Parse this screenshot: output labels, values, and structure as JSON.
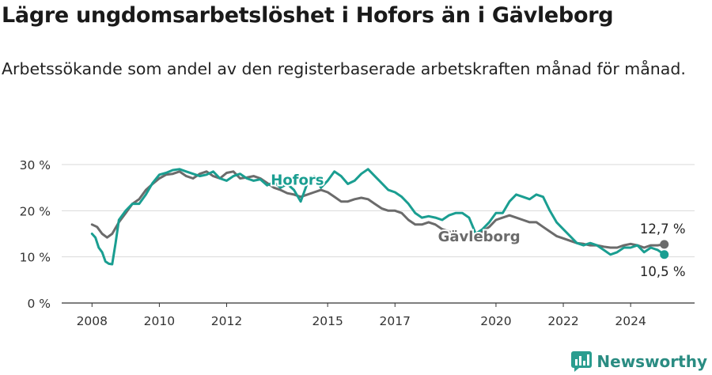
{
  "header": {
    "title": "Lägre ungdomsarbetslöshet i Hofors än i Gävleborg",
    "subtitle": "Arbetssökande som andel av den registerbaserade arbetskraften månad för månad."
  },
  "brand": {
    "name": "Newsworthy",
    "logo_icon": "newsworthy-logo-icon",
    "color": "#2a9d8f"
  },
  "chart_data": {
    "type": "line",
    "title": "Lägre ungdomsarbetslöshet i Hofors än i Gävleborg",
    "subtitle": "Arbetssökande som andel av den registerbaserade arbetskraften månad för månad.",
    "x_ticks": [
      "2008",
      "2010",
      "2012",
      "2015",
      "2017",
      "2020",
      "2022",
      "2024"
    ],
    "xlim": [
      2007.1,
      2025.9
    ],
    "y_ticks": [
      "0 %",
      "10 %",
      "20 %",
      "30 %"
    ],
    "ylim": [
      0,
      30
    ],
    "grid": true,
    "legend": "inline labels",
    "series": [
      {
        "name": "Hofors",
        "color": "#1a9e91",
        "points": [
          [
            2008.0,
            15.0
          ],
          [
            2008.1,
            14.2
          ],
          [
            2008.2,
            12.0
          ],
          [
            2008.3,
            11.0
          ],
          [
            2008.4,
            9.0
          ],
          [
            2008.5,
            8.5
          ],
          [
            2008.6,
            8.4
          ],
          [
            2008.7,
            13.0
          ],
          [
            2008.8,
            18.0
          ],
          [
            2009.0,
            20.0
          ],
          [
            2009.2,
            21.5
          ],
          [
            2009.4,
            21.5
          ],
          [
            2009.6,
            23.5
          ],
          [
            2009.8,
            26.0
          ],
          [
            2010.0,
            27.8
          ],
          [
            2010.2,
            28.2
          ],
          [
            2010.4,
            28.8
          ],
          [
            2010.6,
            29.0
          ],
          [
            2010.8,
            28.5
          ],
          [
            2011.0,
            28.0
          ],
          [
            2011.2,
            27.5
          ],
          [
            2011.4,
            27.8
          ],
          [
            2011.6,
            28.5
          ],
          [
            2011.8,
            27.0
          ],
          [
            2012.0,
            26.5
          ],
          [
            2012.2,
            27.5
          ],
          [
            2012.4,
            28.0
          ],
          [
            2012.6,
            27.0
          ],
          [
            2012.8,
            26.5
          ],
          [
            2013.0,
            26.8
          ],
          [
            2013.2,
            25.5
          ],
          [
            2013.4,
            26.2
          ],
          [
            2013.6,
            25.0
          ],
          [
            2013.8,
            25.8
          ],
          [
            2014.0,
            24.5
          ],
          [
            2014.2,
            22.0
          ],
          [
            2014.4,
            26.0
          ],
          [
            2014.6,
            27.5
          ],
          [
            2014.8,
            25.0
          ],
          [
            2015.0,
            26.5
          ],
          [
            2015.2,
            28.5
          ],
          [
            2015.4,
            27.5
          ],
          [
            2015.6,
            25.8
          ],
          [
            2015.8,
            26.5
          ],
          [
            2016.0,
            28.0
          ],
          [
            2016.2,
            29.0
          ],
          [
            2016.4,
            27.5
          ],
          [
            2016.6,
            26.0
          ],
          [
            2016.8,
            24.5
          ],
          [
            2017.0,
            24.0
          ],
          [
            2017.2,
            23.0
          ],
          [
            2017.4,
            21.5
          ],
          [
            2017.6,
            19.5
          ],
          [
            2017.8,
            18.5
          ],
          [
            2018.0,
            18.8
          ],
          [
            2018.2,
            18.5
          ],
          [
            2018.4,
            18.0
          ],
          [
            2018.6,
            19.0
          ],
          [
            2018.8,
            19.5
          ],
          [
            2019.0,
            19.5
          ],
          [
            2019.2,
            18.5
          ],
          [
            2019.4,
            15.0
          ],
          [
            2019.6,
            16.0
          ],
          [
            2019.8,
            17.5
          ],
          [
            2020.0,
            19.5
          ],
          [
            2020.2,
            19.5
          ],
          [
            2020.4,
            22.0
          ],
          [
            2020.6,
            23.5
          ],
          [
            2020.8,
            23.0
          ],
          [
            2021.0,
            22.5
          ],
          [
            2021.2,
            23.5
          ],
          [
            2021.4,
            23.0
          ],
          [
            2021.6,
            20.0
          ],
          [
            2021.8,
            17.5
          ],
          [
            2022.0,
            16.0
          ],
          [
            2022.2,
            14.5
          ],
          [
            2022.4,
            13.0
          ],
          [
            2022.6,
            12.5
          ],
          [
            2022.8,
            13.0
          ],
          [
            2023.0,
            12.5
          ],
          [
            2023.2,
            11.5
          ],
          [
            2023.4,
            10.5
          ],
          [
            2023.6,
            11.0
          ],
          [
            2023.8,
            12.0
          ],
          [
            2024.0,
            12.0
          ],
          [
            2024.2,
            12.5
          ],
          [
            2024.4,
            11.0
          ],
          [
            2024.6,
            12.0
          ],
          [
            2024.8,
            11.5
          ],
          [
            2025.0,
            10.5
          ]
        ]
      },
      {
        "name": "Gävleborg",
        "color": "#6b6b6b",
        "points": [
          [
            2008.0,
            17.0
          ],
          [
            2008.15,
            16.5
          ],
          [
            2008.3,
            15.0
          ],
          [
            2008.45,
            14.2
          ],
          [
            2008.6,
            15.0
          ],
          [
            2008.8,
            17.5
          ],
          [
            2009.0,
            19.5
          ],
          [
            2009.2,
            21.5
          ],
          [
            2009.4,
            22.5
          ],
          [
            2009.6,
            24.5
          ],
          [
            2009.8,
            25.8
          ],
          [
            2010.0,
            27.0
          ],
          [
            2010.2,
            27.8
          ],
          [
            2010.4,
            28.0
          ],
          [
            2010.6,
            28.5
          ],
          [
            2010.8,
            27.5
          ],
          [
            2011.0,
            27.0
          ],
          [
            2011.2,
            28.0
          ],
          [
            2011.4,
            28.5
          ],
          [
            2011.6,
            27.5
          ],
          [
            2011.8,
            27.0
          ],
          [
            2012.0,
            28.2
          ],
          [
            2012.2,
            28.5
          ],
          [
            2012.4,
            27.0
          ],
          [
            2012.6,
            27.2
          ],
          [
            2012.8,
            27.5
          ],
          [
            2013.0,
            27.0
          ],
          [
            2013.2,
            26.0
          ],
          [
            2013.4,
            25.0
          ],
          [
            2013.6,
            24.5
          ],
          [
            2013.8,
            23.8
          ],
          [
            2014.0,
            23.5
          ],
          [
            2014.2,
            23.0
          ],
          [
            2014.4,
            23.5
          ],
          [
            2014.6,
            24.0
          ],
          [
            2014.8,
            24.5
          ],
          [
            2015.0,
            24.0
          ],
          [
            2015.2,
            23.0
          ],
          [
            2015.4,
            22.0
          ],
          [
            2015.6,
            22.0
          ],
          [
            2015.8,
            22.5
          ],
          [
            2016.0,
            22.8
          ],
          [
            2016.2,
            22.5
          ],
          [
            2016.4,
            21.5
          ],
          [
            2016.6,
            20.5
          ],
          [
            2016.8,
            20.0
          ],
          [
            2017.0,
            20.0
          ],
          [
            2017.2,
            19.5
          ],
          [
            2017.4,
            18.0
          ],
          [
            2017.6,
            17.0
          ],
          [
            2017.8,
            17.0
          ],
          [
            2018.0,
            17.5
          ],
          [
            2018.2,
            17.0
          ],
          [
            2018.4,
            16.0
          ],
          [
            2018.6,
            15.5
          ],
          [
            2018.8,
            15.0
          ],
          [
            2019.0,
            14.8
          ],
          [
            2019.2,
            14.5
          ],
          [
            2019.4,
            14.8
          ],
          [
            2019.6,
            15.5
          ],
          [
            2019.8,
            16.5
          ],
          [
            2020.0,
            18.0
          ],
          [
            2020.2,
            18.5
          ],
          [
            2020.4,
            19.0
          ],
          [
            2020.6,
            18.5
          ],
          [
            2020.8,
            18.0
          ],
          [
            2021.0,
            17.5
          ],
          [
            2021.2,
            17.5
          ],
          [
            2021.4,
            16.5
          ],
          [
            2021.6,
            15.5
          ],
          [
            2021.8,
            14.5
          ],
          [
            2022.0,
            14.0
          ],
          [
            2022.2,
            13.5
          ],
          [
            2022.4,
            13.0
          ],
          [
            2022.6,
            12.8
          ],
          [
            2022.8,
            12.5
          ],
          [
            2023.0,
            12.5
          ],
          [
            2023.2,
            12.2
          ],
          [
            2023.4,
            12.0
          ],
          [
            2023.6,
            12.0
          ],
          [
            2023.8,
            12.5
          ],
          [
            2024.0,
            12.8
          ],
          [
            2024.2,
            12.5
          ],
          [
            2024.4,
            12.0
          ],
          [
            2024.6,
            12.5
          ],
          [
            2024.8,
            12.5
          ],
          [
            2025.0,
            12.7
          ]
        ]
      }
    ],
    "annotations": [
      {
        "series": "Gävleborg",
        "x": 2025.0,
        "y": 12.7,
        "label": "12,7 %"
      },
      {
        "series": "Hofors",
        "x": 2025.0,
        "y": 10.5,
        "label": "10,5 %"
      }
    ],
    "inline_labels": [
      {
        "series": "Hofors",
        "text": "Hofors",
        "x": 2014.1,
        "y": 25.6
      },
      {
        "series": "Gävleborg",
        "text": "Gävleborg",
        "x": 2019.5,
        "y": 13.4
      }
    ]
  }
}
